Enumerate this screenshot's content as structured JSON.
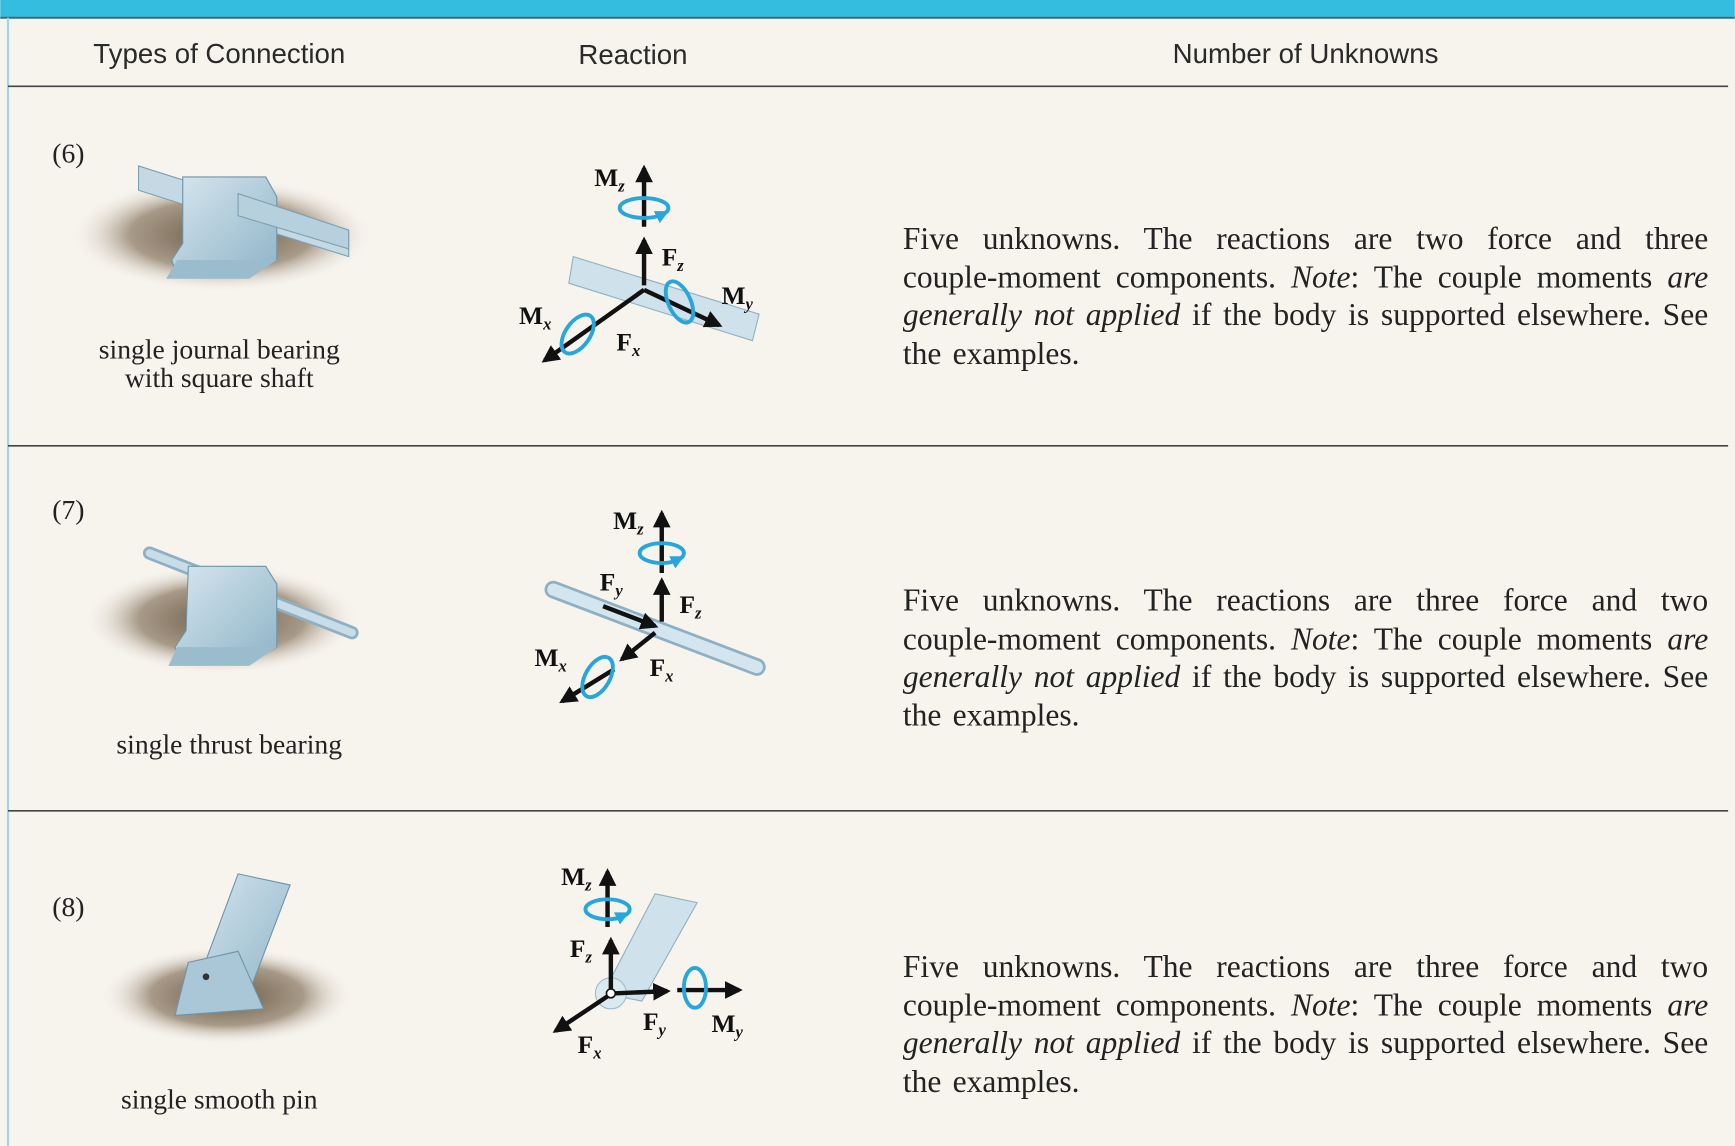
{
  "header": {
    "columns": [
      "Types of Connection",
      "Reaction",
      "Number of Unknowns"
    ]
  },
  "rows": [
    {
      "number": "(6)",
      "caption": [
        "single journal bearing",
        "with square shaft"
      ],
      "reactions": [
        {
          "symbol": "M",
          "sub": "z"
        },
        {
          "symbol": "F",
          "sub": "z"
        },
        {
          "symbol": "M",
          "sub": "y"
        },
        {
          "symbol": "M",
          "sub": "x"
        },
        {
          "symbol": "F",
          "sub": "x"
        }
      ],
      "description": {
        "text": "Five unknowns. The reactions are two force and three couple-moment components. ",
        "note": "Note",
        "note_text": ": The couple moments ",
        "emphasis": "are generally not applied",
        "closing": " if the body is supported elsewhere. See the examples."
      }
    },
    {
      "number": "(7)",
      "caption": [
        "single thrust bearing"
      ],
      "reactions": [
        {
          "symbol": "M",
          "sub": "z"
        },
        {
          "symbol": "F",
          "sub": "y"
        },
        {
          "symbol": "F",
          "sub": "z"
        },
        {
          "symbol": "M",
          "sub": "x"
        },
        {
          "symbol": "F",
          "sub": "x"
        }
      ],
      "description": {
        "text": "Five unknowns. The reactions are three force and two couple-moment components. ",
        "note": "Note",
        "note_text": ": The couple moments ",
        "emphasis": "are generally not applied",
        "closing": " if the body is supported elsewhere. See the examples."
      }
    },
    {
      "number": "(8)",
      "caption": [
        "single smooth pin"
      ],
      "reactions": [
        {
          "symbol": "M",
          "sub": "z"
        },
        {
          "symbol": "F",
          "sub": "z"
        },
        {
          "symbol": "F",
          "sub": "y"
        },
        {
          "symbol": "M",
          "sub": "y"
        },
        {
          "symbol": "F",
          "sub": "x"
        }
      ],
      "description": {
        "text": "Five unknowns. The reactions are three force and two couple-moment components. ",
        "note": "Note",
        "note_text": ": The couple moments ",
        "emphasis": "are generally not applied",
        "closing": " if the body is supported elsewhere. See the examples."
      }
    }
  ]
}
